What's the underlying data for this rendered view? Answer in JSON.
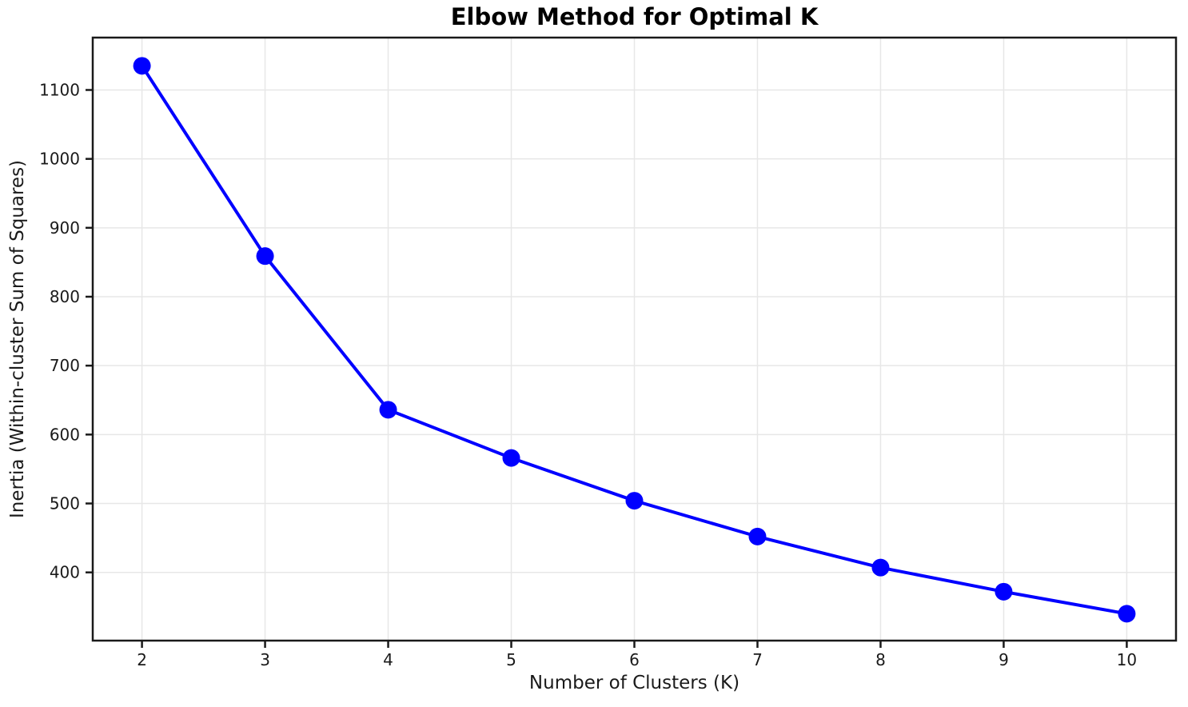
{
  "chart_data": {
    "type": "line",
    "title": "Elbow Method for Optimal K",
    "xlabel": "Number of Clusters (K)",
    "ylabel": "Inertia (Within-cluster Sum of Squares)",
    "x": [
      2,
      3,
      4,
      5,
      6,
      7,
      8,
      9,
      10
    ],
    "series": [
      {
        "name": "Inertia",
        "values": [
          1135,
          859,
          636,
          566,
          504,
          452,
          407,
          372,
          340
        ]
      }
    ],
    "xticks": [
      "2",
      "3",
      "4",
      "5",
      "6",
      "7",
      "8",
      "9",
      "10"
    ],
    "yticks": [
      "400",
      "500",
      "600",
      "700",
      "800",
      "900",
      "1000",
      "1100"
    ],
    "xlim": [
      1.6,
      10.4
    ],
    "ylim": [
      301,
      1176
    ],
    "grid": true,
    "legend_position": "none",
    "marker": "o",
    "colors": {
      "line": "#0000ff",
      "marker": "#0000ff",
      "grid": "#e7e7e7",
      "spine": "#1a1a1a",
      "tick": "#1a1a1a",
      "text": "#1a1a1a",
      "title_text": "#000000",
      "background": "#ffffff"
    }
  }
}
